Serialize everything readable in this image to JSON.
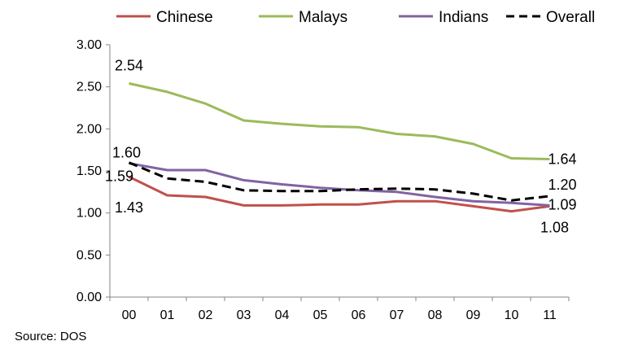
{
  "chart_data": {
    "type": "line",
    "categories": [
      "00",
      "01",
      "02",
      "03",
      "04",
      "05",
      "06",
      "07",
      "08",
      "09",
      "10",
      "11"
    ],
    "ylim": [
      0,
      3
    ],
    "yticks": [
      "0.00",
      "0.50",
      "1.00",
      "1.50",
      "2.00",
      "2.50",
      "3.00"
    ],
    "grid": false,
    "legend_position": "top",
    "series": [
      {
        "name": "Chinese",
        "color": "#c0504d",
        "dash": false,
        "values": [
          1.43,
          1.21,
          1.19,
          1.09,
          1.09,
          1.1,
          1.1,
          1.14,
          1.14,
          1.08,
          1.02,
          1.08
        ]
      },
      {
        "name": "Malays",
        "color": "#9bbb59",
        "dash": false,
        "values": [
          2.54,
          2.44,
          2.3,
          2.1,
          2.06,
          2.03,
          2.02,
          1.94,
          1.91,
          1.82,
          1.65,
          1.64
        ]
      },
      {
        "name": "Indians",
        "color": "#8064a2",
        "dash": false,
        "values": [
          1.59,
          1.51,
          1.51,
          1.39,
          1.34,
          1.3,
          1.27,
          1.25,
          1.19,
          1.14,
          1.12,
          1.09
        ]
      },
      {
        "name": "Overall",
        "color": "#000000",
        "dash": true,
        "values": [
          1.6,
          1.41,
          1.37,
          1.27,
          1.26,
          1.26,
          1.28,
          1.29,
          1.28,
          1.23,
          1.15,
          1.2
        ]
      }
    ],
    "data_labels": [
      {
        "text": "2.54",
        "series": "Malays",
        "index": 0
      },
      {
        "text": "1.60",
        "series": "Overall",
        "index": 0
      },
      {
        "text": "1.59",
        "series": "Indians",
        "index": 0
      },
      {
        "text": "1.43",
        "series": "Chinese",
        "index": 0
      },
      {
        "text": "1.64",
        "series": "Malays",
        "index": 11
      },
      {
        "text": "1.20",
        "series": "Overall",
        "index": 11
      },
      {
        "text": "1.09",
        "series": "Indians",
        "index": 11
      },
      {
        "text": "1.08",
        "series": "Chinese",
        "index": 11
      }
    ]
  },
  "source": "Source: DOS"
}
